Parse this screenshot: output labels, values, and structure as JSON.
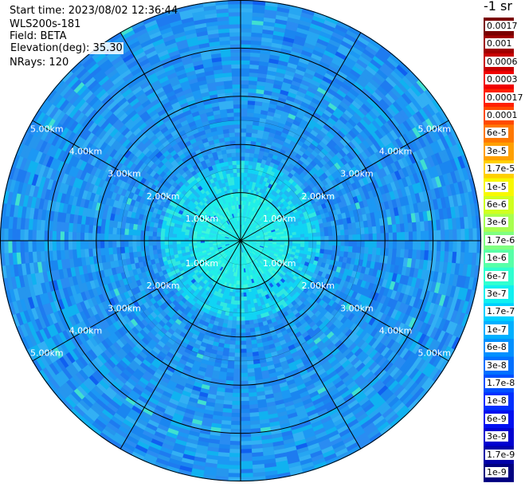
{
  "info": {
    "start_time": "Start time: 2023/08/02 12:36:44",
    "instrument": "WLS200s-181",
    "field": "Field: BETA",
    "elevation": "Elevation(deg): 35.30",
    "nrays": "NRays: 120"
  },
  "colorbar": {
    "unit_label": "-1 sr",
    "labels": [
      "0.0017",
      "0.001",
      "0.0006",
      "0.0003",
      "0.00017",
      "0.0001",
      "6e-5",
      "3e-5",
      "1.7e-5",
      "1e-5",
      "6e-6",
      "3e-6",
      "1.7e-6",
      "1e-6",
      "6e-7",
      "3e-7",
      "1.7e-7",
      "1e-7",
      "6e-8",
      "3e-8",
      "1.7e-8",
      "1e-8",
      "6e-9",
      "3e-9",
      "1.7e-9",
      "1e-9"
    ],
    "colors": [
      "#7a0000",
      "#a00000",
      "#c80000",
      "#f00000",
      "#ff2000",
      "#ff4a00",
      "#ff7800",
      "#ffa000",
      "#ffd000",
      "#f8f800",
      "#d0ff20",
      "#a8ff50",
      "#80ff80",
      "#58ffa8",
      "#30ffd0",
      "#10f0f0",
      "#00d0ff",
      "#00b0ff",
      "#0090ff",
      "#0070ff",
      "#0050ff",
      "#0030ff",
      "#0010f0",
      "#0000d0",
      "#0000a8",
      "#000080"
    ]
  },
  "chart_data": {
    "type": "heatmap",
    "projection": "polar-ppi",
    "field": "BETA",
    "nrays": 120,
    "range_rings_km": [
      1.0,
      2.0,
      3.0,
      4.0,
      5.0
    ],
    "ring_labels": [
      "1.00km",
      "2.00km",
      "3.00km",
      "4.00km",
      "5.00km"
    ],
    "max_range_km": 5.0,
    "spoke_angles_deg": [
      0,
      30,
      60,
      90,
      120,
      150,
      180,
      210,
      240,
      270,
      300,
      330
    ],
    "value_range": [
      1e-09,
      0.0017
    ],
    "dominant_values": {
      "near_center": 1.7e-06,
      "mid_range": 3e-07,
      "far_range": 1e-07
    }
  }
}
